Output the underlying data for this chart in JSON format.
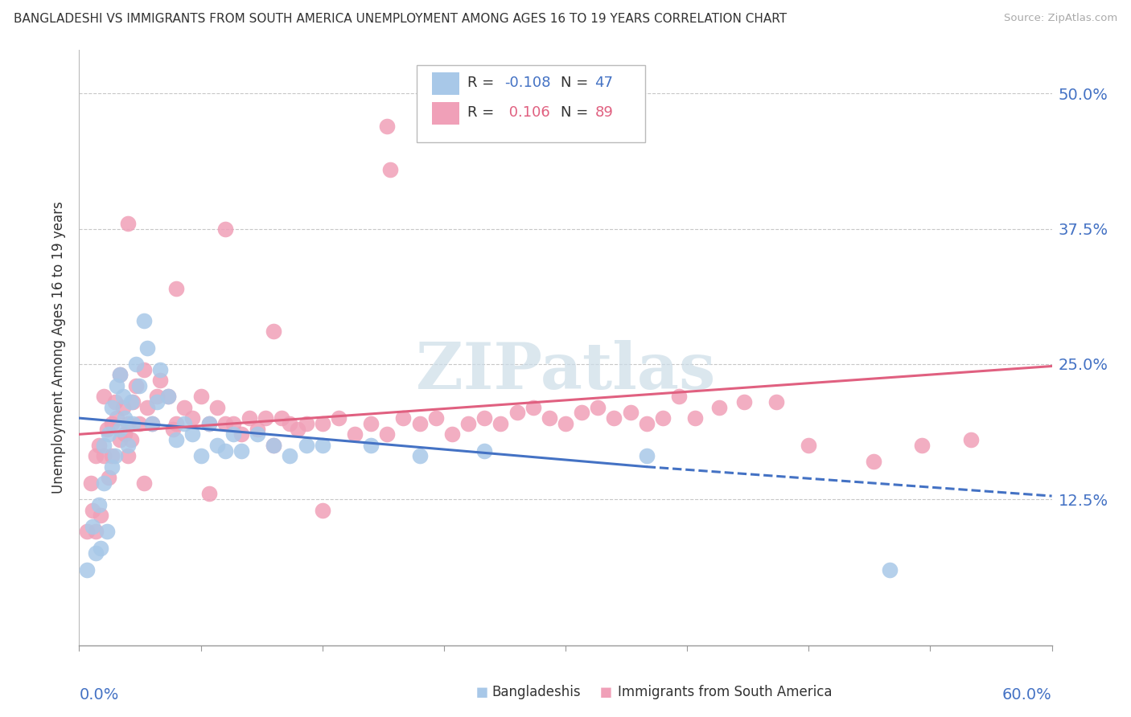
{
  "title": "BANGLADESHI VS IMMIGRANTS FROM SOUTH AMERICA UNEMPLOYMENT AMONG AGES 16 TO 19 YEARS CORRELATION CHART",
  "source": "Source: ZipAtlas.com",
  "ylabel": "Unemployment Among Ages 16 to 19 years",
  "xmin": 0.0,
  "xmax": 0.6,
  "ymin": -0.01,
  "ymax": 0.54,
  "blue_color": "#a8c8e8",
  "pink_color": "#f0a0b8",
  "blue_line_color": "#4472c4",
  "pink_line_color": "#e06080",
  "blue_R": "-0.108",
  "blue_N": "47",
  "pink_R": "0.106",
  "pink_N": "89",
  "blue_line_y0": 0.2,
  "blue_line_y1": 0.2,
  "blue_line_x_solid_end": 0.35,
  "blue_line_y_solid_end": 0.155,
  "blue_line_x_end": 0.6,
  "blue_line_y_end": 0.128,
  "pink_line_y0": 0.185,
  "pink_line_y1": 0.248,
  "blue_scatter_x": [
    0.005,
    0.008,
    0.01,
    0.012,
    0.013,
    0.015,
    0.015,
    0.017,
    0.018,
    0.02,
    0.02,
    0.022,
    0.023,
    0.025,
    0.025,
    0.027,
    0.028,
    0.03,
    0.032,
    0.033,
    0.035,
    0.037,
    0.04,
    0.042,
    0.045,
    0.048,
    0.05,
    0.055,
    0.06,
    0.065,
    0.07,
    0.075,
    0.08,
    0.085,
    0.09,
    0.095,
    0.1,
    0.11,
    0.12,
    0.13,
    0.14,
    0.15,
    0.18,
    0.21,
    0.25,
    0.35,
    0.5
  ],
  "blue_scatter_y": [
    0.06,
    0.1,
    0.075,
    0.12,
    0.08,
    0.175,
    0.14,
    0.095,
    0.185,
    0.155,
    0.21,
    0.165,
    0.23,
    0.19,
    0.24,
    0.22,
    0.2,
    0.175,
    0.215,
    0.195,
    0.25,
    0.23,
    0.29,
    0.265,
    0.195,
    0.215,
    0.245,
    0.22,
    0.18,
    0.195,
    0.185,
    0.165,
    0.195,
    0.175,
    0.17,
    0.185,
    0.17,
    0.185,
    0.175,
    0.165,
    0.175,
    0.175,
    0.175,
    0.165,
    0.17,
    0.165,
    0.06
  ],
  "pink_scatter_x": [
    0.005,
    0.007,
    0.008,
    0.01,
    0.01,
    0.012,
    0.013,
    0.015,
    0.015,
    0.017,
    0.018,
    0.02,
    0.02,
    0.022,
    0.023,
    0.025,
    0.025,
    0.027,
    0.028,
    0.03,
    0.03,
    0.032,
    0.033,
    0.035,
    0.037,
    0.04,
    0.042,
    0.045,
    0.048,
    0.05,
    0.055,
    0.058,
    0.06,
    0.065,
    0.07,
    0.075,
    0.08,
    0.085,
    0.09,
    0.095,
    0.1,
    0.105,
    0.11,
    0.115,
    0.12,
    0.125,
    0.13,
    0.135,
    0.14,
    0.15,
    0.16,
    0.17,
    0.18,
    0.19,
    0.2,
    0.21,
    0.22,
    0.23,
    0.24,
    0.25,
    0.26,
    0.27,
    0.28,
    0.29,
    0.3,
    0.31,
    0.32,
    0.33,
    0.34,
    0.35,
    0.36,
    0.37,
    0.38,
    0.395,
    0.41,
    0.43,
    0.45,
    0.49,
    0.52,
    0.55,
    0.19,
    0.192,
    0.03,
    0.06,
    0.09,
    0.12,
    0.04,
    0.08,
    0.15
  ],
  "pink_scatter_y": [
    0.095,
    0.14,
    0.115,
    0.165,
    0.095,
    0.175,
    0.11,
    0.22,
    0.165,
    0.19,
    0.145,
    0.195,
    0.165,
    0.215,
    0.2,
    0.18,
    0.24,
    0.21,
    0.185,
    0.195,
    0.165,
    0.18,
    0.215,
    0.23,
    0.195,
    0.245,
    0.21,
    0.195,
    0.22,
    0.235,
    0.22,
    0.19,
    0.195,
    0.21,
    0.2,
    0.22,
    0.195,
    0.21,
    0.195,
    0.195,
    0.185,
    0.2,
    0.19,
    0.2,
    0.175,
    0.2,
    0.195,
    0.19,
    0.195,
    0.195,
    0.2,
    0.185,
    0.195,
    0.185,
    0.2,
    0.195,
    0.2,
    0.185,
    0.195,
    0.2,
    0.195,
    0.205,
    0.21,
    0.2,
    0.195,
    0.205,
    0.21,
    0.2,
    0.205,
    0.195,
    0.2,
    0.22,
    0.2,
    0.21,
    0.215,
    0.215,
    0.175,
    0.16,
    0.175,
    0.18,
    0.47,
    0.43,
    0.38,
    0.32,
    0.375,
    0.28,
    0.14,
    0.13,
    0.115
  ]
}
